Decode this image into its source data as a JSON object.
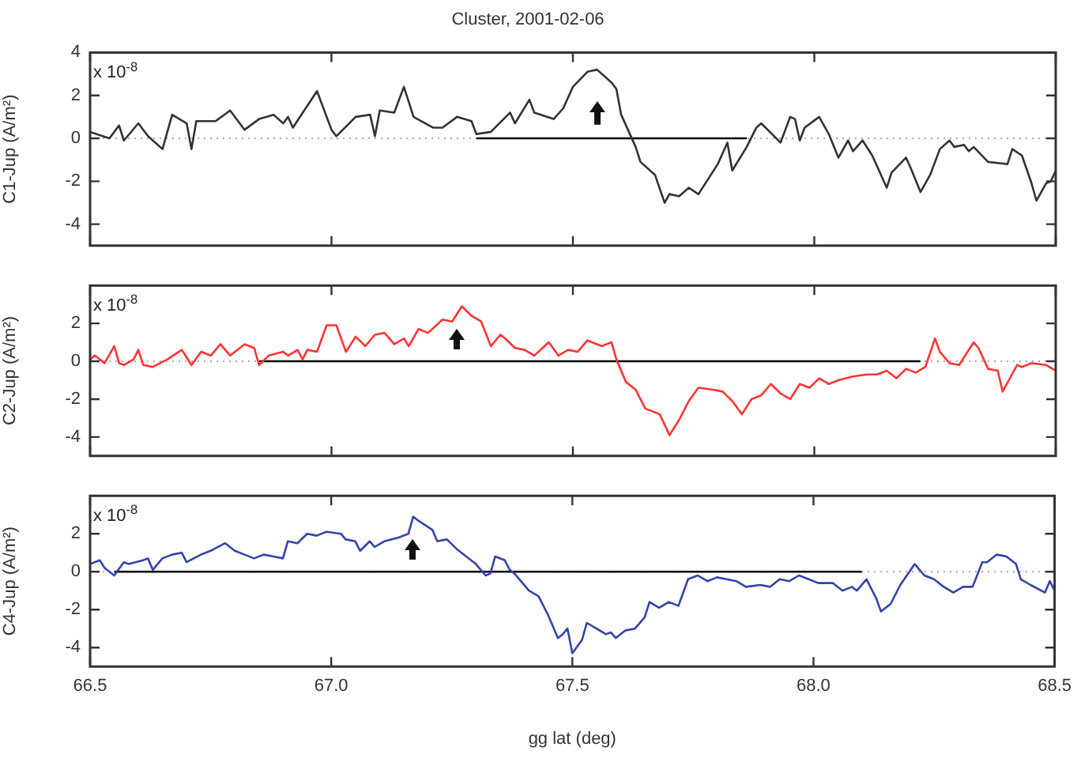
{
  "chart_data": [
    {
      "type": "line",
      "title": "Cluster, 2001-02-06",
      "ylabel": "C1-Jup (A/m²)",
      "annotations": [
        "x 10$^{-8}$"
      ],
      "xlim": [
        66.5,
        68.5
      ],
      "xticks": [
        {
          "value": 66.5,
          "label": null
        },
        {
          "value": 67,
          "label": null
        },
        {
          "value": 67.5,
          "label": null
        },
        {
          "value": 68,
          "label": null
        },
        {
          "value": 68.5,
          "label": null
        }
      ],
      "ylim": [
        -5,
        4
      ],
      "yticks": [
        -4,
        -2,
        0,
        2,
        4
      ],
      "tick_labels": "y",
      "grid": false,
      "legend": false,
      "marker": "none",
      "line_style": "solid",
      "ref_lines": [
        {
          "axis": "y",
          "value": 0,
          "line_style": "dotted",
          "color": "#aaaaaa"
        }
      ],
      "series": [
        {
          "color": "#333333",
          "x": [
            66.5,
            66.54,
            66.56,
            66.57,
            66.6,
            66.62,
            66.65,
            66.67,
            66.7,
            66.71,
            66.72,
            66.76,
            66.79,
            66.82,
            66.85,
            66.88,
            66.9,
            66.91,
            66.92,
            66.97,
            67.0,
            67.01,
            67.05,
            67.08,
            67.09,
            67.1,
            67.13,
            67.15,
            67.17,
            67.21,
            67.23,
            67.26,
            67.29,
            67.3,
            67.33,
            67.37,
            67.38,
            67.41,
            67.42,
            67.46,
            67.48,
            67.5,
            67.53,
            67.55,
            67.58,
            67.59,
            67.6,
            67.63,
            67.64,
            67.67,
            67.69,
            67.7,
            67.72,
            67.74,
            67.76,
            67.78,
            67.8,
            67.82,
            67.83,
            67.86,
            67.88,
            67.89,
            67.93,
            67.95,
            67.96,
            67.97,
            67.98,
            68.01,
            68.03,
            68.05,
            68.07,
            68.08,
            68.1,
            68.12,
            68.15,
            68.16,
            68.19,
            68.2,
            68.22,
            68.24,
            68.26,
            68.28,
            68.29,
            68.31,
            68.32,
            68.33,
            68.36,
            68.4,
            68.41,
            68.43,
            68.45,
            68.46,
            68.48,
            68.49,
            68.5
          ],
          "values": [
            0.3,
            0.0,
            0.6,
            -0.1,
            0.7,
            0.1,
            -0.5,
            1.1,
            0.7,
            -0.5,
            0.8,
            0.8,
            1.3,
            0.4,
            0.9,
            1.1,
            0.7,
            1.0,
            0.5,
            2.2,
            0.4,
            0.1,
            1.0,
            1.1,
            0.1,
            1.3,
            1.2,
            2.4,
            1.0,
            0.5,
            0.5,
            1.0,
            0.8,
            0.2,
            0.3,
            1.2,
            0.7,
            1.8,
            1.2,
            0.9,
            1.4,
            2.4,
            3.1,
            3.2,
            2.6,
            2.3,
            1.1,
            -0.4,
            -1.1,
            -1.7,
            -3.0,
            -2.6,
            -2.7,
            -2.3,
            -2.6,
            -1.9,
            -1.2,
            -0.2,
            -1.5,
            -0.4,
            0.5,
            0.7,
            -0.2,
            1.0,
            0.9,
            -0.1,
            0.5,
            1.0,
            0.2,
            -0.9,
            -0.1,
            -0.6,
            -0.1,
            -0.8,
            -2.3,
            -1.6,
            -0.9,
            -1.4,
            -2.5,
            -1.7,
            -0.5,
            -0.1,
            -0.4,
            -0.3,
            -0.6,
            -0.4,
            -1.1,
            -1.2,
            -0.5,
            -0.8,
            -2.1,
            -2.9,
            -2.1,
            -2.0,
            -1.5
          ]
        },
        {
          "color": "#000000",
          "x": [
            67.3,
            67.86
          ],
          "values": [
            0,
            0
          ]
        }
      ]
    },
    {
      "type": "line",
      "ylabel": "C2-Jup (A/m²)",
      "annotations": [
        "x 10$^{-8}$"
      ],
      "xlim": [
        66.5,
        68.5
      ],
      "xticks": [
        {
          "value": 66.5,
          "label": null
        },
        {
          "value": 67,
          "label": null
        },
        {
          "value": 67.5,
          "label": null
        },
        {
          "value": 68,
          "label": null
        },
        {
          "value": 68.5,
          "label": null
        }
      ],
      "ylim": [
        -5,
        4
      ],
      "yticks": [
        -4,
        -2,
        0,
        2
      ],
      "tick_labels": "y",
      "grid": false,
      "legend": false,
      "marker": "none",
      "line_style": "solid",
      "ref_lines": [
        {
          "axis": "y",
          "value": 0,
          "line_style": "dotted",
          "color": "#aaaaaa"
        }
      ],
      "series": [
        {
          "color": "#ff3333",
          "x": [
            66.5,
            66.51,
            66.53,
            66.55,
            66.56,
            66.57,
            66.59,
            66.6,
            66.61,
            66.63,
            66.66,
            66.69,
            66.71,
            66.73,
            66.75,
            66.77,
            66.79,
            66.82,
            66.84,
            66.85,
            66.87,
            66.9,
            66.91,
            66.93,
            66.94,
            66.95,
            66.97,
            66.99,
            67.01,
            67.03,
            67.05,
            67.07,
            67.09,
            67.11,
            67.13,
            67.15,
            67.16,
            67.18,
            67.2,
            67.23,
            67.25,
            67.27,
            67.29,
            67.31,
            67.33,
            67.35,
            67.36,
            67.38,
            67.4,
            67.42,
            67.45,
            67.47,
            67.49,
            67.51,
            67.53,
            67.55,
            67.56,
            67.58,
            67.59,
            67.61,
            67.63,
            67.65,
            67.68,
            67.7,
            67.72,
            67.74,
            67.76,
            67.79,
            67.81,
            67.83,
            67.85,
            67.87,
            67.89,
            67.91,
            67.93,
            67.95,
            67.97,
            67.99,
            68.01,
            68.03,
            68.05,
            68.08,
            68.11,
            68.13,
            68.15,
            68.17,
            68.19,
            68.21,
            68.23,
            68.25,
            68.26,
            68.28,
            68.3,
            68.33,
            68.34,
            68.36,
            68.38,
            68.39,
            68.42,
            68.43,
            68.45,
            68.48,
            68.5
          ],
          "values": [
            0.1,
            0.3,
            -0.1,
            0.8,
            -0.1,
            -0.2,
            0.1,
            0.6,
            -0.2,
            -0.3,
            0.1,
            0.6,
            -0.2,
            0.5,
            0.3,
            0.9,
            0.3,
            0.9,
            0.7,
            -0.2,
            0.3,
            0.5,
            0.3,
            0.6,
            0.1,
            0.6,
            0.5,
            1.9,
            1.9,
            0.5,
            1.3,
            0.8,
            1.4,
            1.5,
            0.9,
            1.2,
            0.8,
            1.7,
            1.5,
            2.2,
            2.1,
            2.9,
            2.4,
            2.1,
            0.8,
            1.4,
            1.2,
            0.7,
            0.6,
            0.3,
            1.0,
            0.3,
            0.6,
            0.5,
            1.1,
            0.9,
            0.8,
            1.0,
            0.1,
            -1.1,
            -1.5,
            -2.5,
            -2.8,
            -3.9,
            -3.1,
            -2.1,
            -1.4,
            -1.5,
            -1.6,
            -2.1,
            -2.8,
            -2.0,
            -1.8,
            -1.2,
            -1.7,
            -2.0,
            -1.2,
            -1.4,
            -0.9,
            -1.2,
            -1.0,
            -0.8,
            -0.7,
            -0.7,
            -0.5,
            -0.9,
            -0.4,
            -0.6,
            -0.3,
            1.2,
            0.5,
            -0.1,
            -0.2,
            1.0,
            0.7,
            -0.4,
            -0.5,
            -1.6,
            -0.2,
            -0.3,
            -0.1,
            -0.2,
            -0.5
          ]
        },
        {
          "color": "#000000",
          "x": [
            66.85,
            68.22
          ],
          "values": [
            0,
            0
          ]
        }
      ]
    },
    {
      "type": "line",
      "xlabel": "gg lat (deg)",
      "ylabel": "C4-Jup (A/m²)",
      "annotations": [
        "x 10$^{-8}$"
      ],
      "xlim": [
        66.5,
        68.5
      ],
      "xticks": [
        66.5,
        {
          "value": 67,
          "label": "67.0"
        },
        67.5,
        {
          "value": 68,
          "label": "68.0"
        },
        68.5
      ],
      "ylim": [
        -5,
        4
      ],
      "yticks": [
        -4,
        -2,
        0,
        2
      ],
      "grid": false,
      "legend": false,
      "marker": "none",
      "line_style": "solid",
      "ref_lines": [
        {
          "axis": "y",
          "value": 0,
          "line_style": "dotted",
          "color": "#aaaaaa"
        }
      ],
      "series": [
        {
          "color": "#3344aa",
          "x": [
            66.5,
            66.52,
            66.53,
            66.55,
            66.57,
            66.58,
            66.61,
            66.62,
            66.63,
            66.65,
            66.67,
            66.69,
            66.7,
            66.73,
            66.75,
            66.78,
            66.8,
            66.82,
            66.84,
            66.86,
            66.88,
            66.9,
            66.91,
            66.93,
            66.95,
            66.97,
            66.99,
            67.02,
            67.03,
            67.05,
            67.06,
            67.08,
            67.09,
            67.11,
            67.14,
            67.16,
            67.17,
            67.18,
            67.21,
            67.22,
            67.24,
            67.26,
            67.28,
            67.3,
            67.32,
            67.33,
            67.34,
            67.36,
            67.37,
            67.38,
            67.41,
            67.43,
            67.45,
            67.47,
            67.48,
            67.49,
            67.5,
            67.52,
            67.53,
            67.55,
            67.57,
            67.58,
            67.59,
            67.61,
            67.63,
            67.65,
            67.66,
            67.68,
            67.7,
            67.72,
            67.74,
            67.76,
            67.78,
            67.8,
            67.82,
            67.84,
            67.86,
            67.89,
            67.91,
            67.93,
            67.95,
            67.97,
            67.99,
            68.01,
            68.04,
            68.06,
            68.08,
            68.09,
            68.11,
            68.13,
            68.14,
            68.16,
            68.18,
            68.21,
            68.23,
            68.25,
            68.27,
            68.29,
            68.31,
            68.33,
            68.35,
            68.36,
            68.38,
            68.4,
            68.42,
            68.43,
            68.45,
            68.48,
            68.49,
            68.5
          ],
          "values": [
            0.4,
            0.6,
            0.2,
            -0.2,
            0.5,
            0.4,
            0.6,
            0.7,
            0.1,
            0.7,
            0.9,
            1.0,
            0.5,
            0.9,
            1.1,
            1.5,
            1.1,
            0.9,
            0.7,
            0.9,
            0.8,
            0.7,
            1.6,
            1.5,
            2.0,
            1.9,
            2.1,
            2.0,
            1.7,
            1.6,
            1.1,
            1.6,
            1.3,
            1.6,
            1.8,
            2.0,
            2.9,
            2.7,
            2.2,
            1.6,
            1.7,
            1.2,
            0.8,
            0.4,
            -0.2,
            -0.1,
            0.8,
            0.6,
            0.1,
            -0.1,
            -1.0,
            -1.3,
            -2.3,
            -3.5,
            -3.3,
            -3.0,
            -4.3,
            -3.6,
            -2.7,
            -3.0,
            -3.3,
            -3.2,
            -3.5,
            -3.1,
            -3.0,
            -2.4,
            -1.6,
            -1.9,
            -1.6,
            -1.8,
            -0.4,
            -0.2,
            -0.5,
            -0.3,
            -0.4,
            -0.5,
            -0.8,
            -0.7,
            -0.8,
            -0.4,
            -0.5,
            -0.2,
            -0.4,
            -0.6,
            -0.6,
            -1.0,
            -0.8,
            -1.0,
            -0.4,
            -1.4,
            -2.1,
            -1.7,
            -0.7,
            0.4,
            -0.2,
            -0.4,
            -0.8,
            -1.1,
            -0.8,
            -0.8,
            0.5,
            0.5,
            0.9,
            0.8,
            0.4,
            -0.4,
            -0.7,
            -1.1,
            -0.5,
            -1.0
          ]
        },
        {
          "color": "#000000",
          "x": [
            66.55,
            68.1
          ],
          "values": [
            0,
            0
          ]
        }
      ]
    }
  ]
}
